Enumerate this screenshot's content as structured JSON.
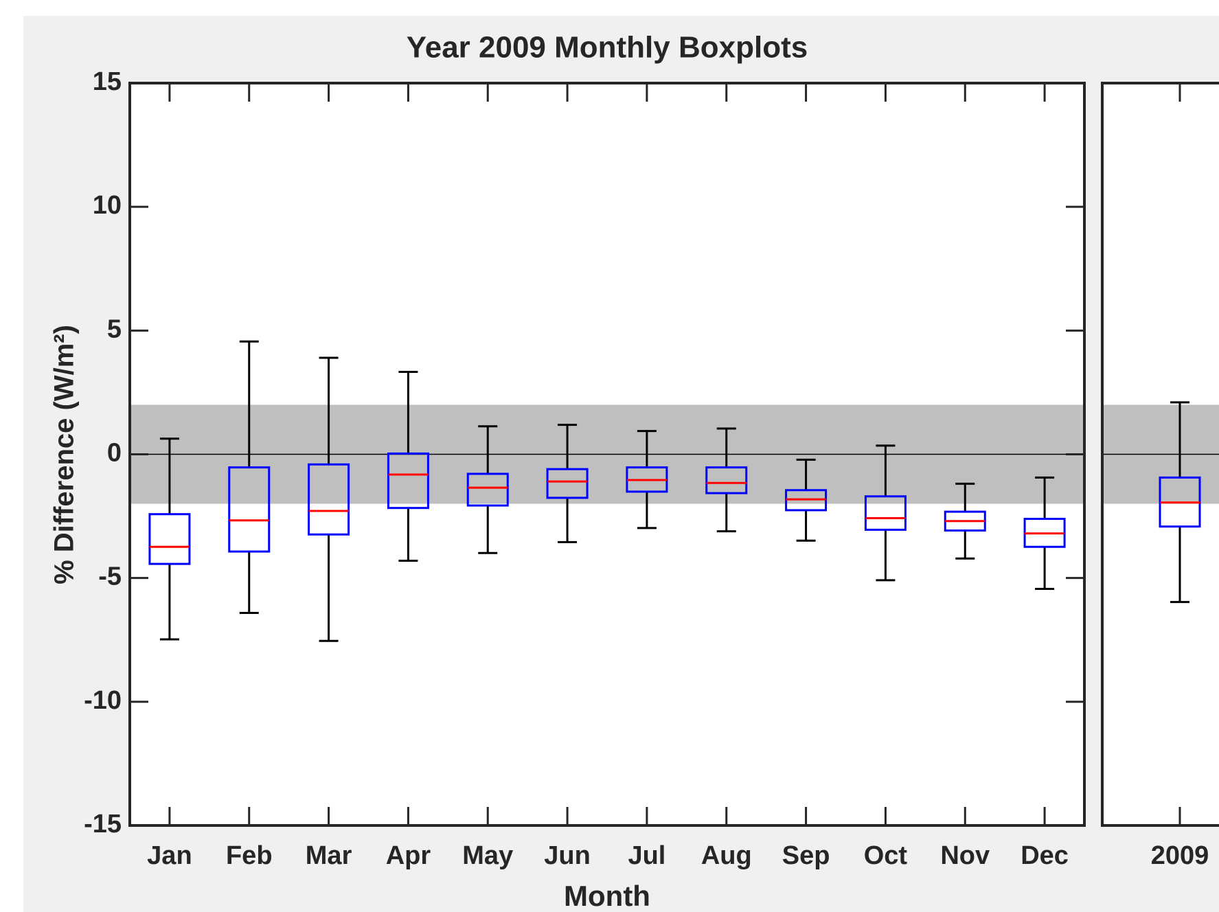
{
  "chart_data": [
    {
      "type": "boxplot",
      "title": "Year 2009 Monthly Boxplots",
      "xlabel": "Month",
      "ylabel": "% Difference (W/m²)",
      "categories": [
        "Jan",
        "Feb",
        "Mar",
        "Apr",
        "May",
        "Jun",
        "Jul",
        "Aug",
        "Sep",
        "Oct",
        "Nov",
        "Dec"
      ],
      "boxes": [
        {
          "low": -7.48,
          "q1": -4.43,
          "median": -3.74,
          "q3": -2.42,
          "high": 0.63
        },
        {
          "low": -6.41,
          "q1": -3.93,
          "median": -2.67,
          "q3": -0.53,
          "high": 4.56
        },
        {
          "low": -7.54,
          "q1": -3.24,
          "median": -2.29,
          "q3": -0.41,
          "high": 3.9
        },
        {
          "low": -4.3,
          "q1": -2.17,
          "median": -0.82,
          "q3": 0.03,
          "high": 3.33
        },
        {
          "low": -3.99,
          "q1": -2.07,
          "median": -1.35,
          "q3": -0.79,
          "high": 1.13
        },
        {
          "low": -3.55,
          "q1": -1.76,
          "median": -1.1,
          "q3": -0.6,
          "high": 1.19
        },
        {
          "low": -2.98,
          "q1": -1.51,
          "median": -1.04,
          "q3": -0.53,
          "high": 0.94
        },
        {
          "low": -3.11,
          "q1": -1.57,
          "median": -1.16,
          "q3": -0.53,
          "high": 1.04
        },
        {
          "low": -3.49,
          "q1": -2.26,
          "median": -1.82,
          "q3": -1.45,
          "high": -0.22
        },
        {
          "low": -5.09,
          "q1": -3.05,
          "median": -2.58,
          "q3": -1.7,
          "high": 0.35
        },
        {
          "low": -4.21,
          "q1": -3.08,
          "median": -2.7,
          "q3": -2.32,
          "high": -1.19
        },
        {
          "low": -5.44,
          "q1": -3.74,
          "median": -3.2,
          "q3": -2.61,
          "high": -0.94
        }
      ],
      "box_color": "#0000ff",
      "median_color": "#ff0000",
      "whisker_color": "#000000",
      "band": [
        -2,
        2
      ],
      "band_color": "#bfbfbf",
      "hline": 0,
      "ylim": [
        -15,
        15
      ],
      "yticks": [
        -15,
        -10,
        -5,
        0,
        5,
        10,
        15
      ]
    },
    {
      "type": "boxplot",
      "categories": [
        "2009"
      ],
      "boxes": [
        {
          "low": -5.97,
          "q1": -2.92,
          "median": -1.95,
          "q3": -0.94,
          "high": 2.1
        }
      ],
      "box_color": "#0000ff",
      "median_color": "#ff0000",
      "whisker_color": "#000000",
      "band": [
        -2,
        2
      ],
      "band_color": "#bfbfbf",
      "hline": 0,
      "ylim": [
        -15,
        15
      ]
    }
  ]
}
